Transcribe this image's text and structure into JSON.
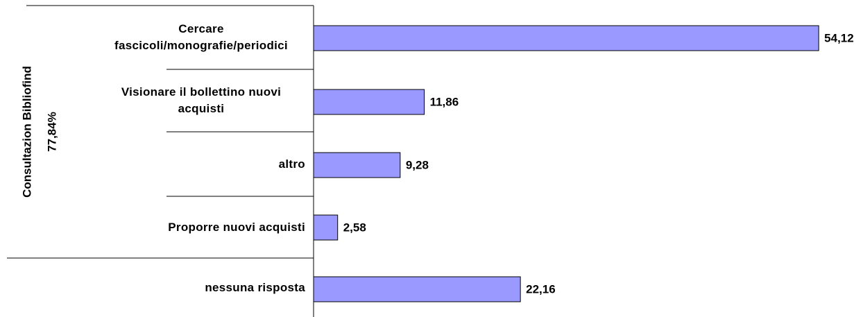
{
  "chart_data": {
    "type": "bar",
    "orientation": "horizontal",
    "group_label": "Consultazion Bibliofind",
    "group_share": "77,84%",
    "categories": [
      "Cercare fascicoli/monografie/periodici",
      "Visionare il bollettino nuovi acquisti",
      "altro",
      "Proporre nuovi acquisti",
      "nessuna risposta"
    ],
    "values": [
      54.12,
      11.86,
      9.28,
      2.58,
      22.16
    ],
    "value_labels": [
      "54,12",
      "11,86",
      "9,28",
      "2,58",
      "22,16"
    ],
    "color": "#9999ff",
    "xlim": [
      0,
      55
    ]
  }
}
